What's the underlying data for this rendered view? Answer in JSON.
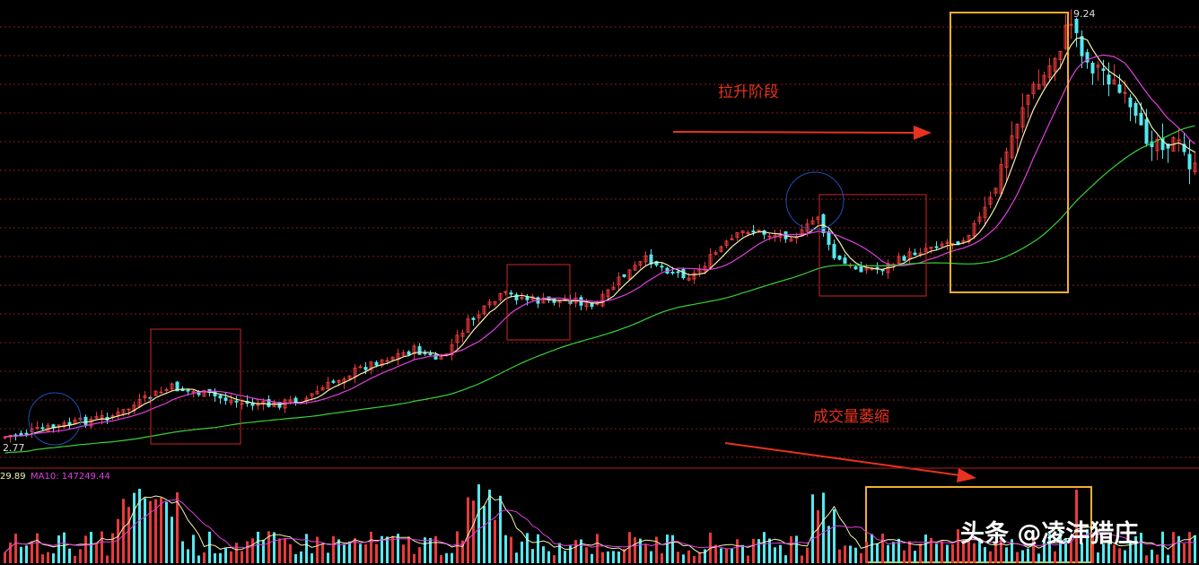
{
  "colors": {
    "up": "#e83a3a",
    "down": "#54e8f0",
    "ma_fast": "#f3f3b0",
    "ma_mid": "#e040e0",
    "ma_slow": "#38d238",
    "grid": "#8a1a1a",
    "annotation": "#e8321e",
    "highlight_box": "#f2b02e",
    "circle": "#1f4fb5",
    "price_text": "#dcdcdc",
    "ma10_text": "#e040e0"
  },
  "price_panel": {
    "high_label": "9.24",
    "low_label": "2.77",
    "annotation_pull_up": "拉升阶段",
    "annotation_volume_shrink": "成交量萎缩"
  },
  "volume_panel": {
    "ma5_value": "29.89",
    "ma10_label": "MA10: 147249.44"
  },
  "watermark": {
    "text": "头条 @凌沣猎庄"
  },
  "chart_data": {
    "type": "candlestick",
    "title": "",
    "price_range": [
      2.77,
      9.24
    ],
    "legend": "none",
    "grid": true,
    "price_extremes": {
      "high": 9.24,
      "low": 2.77
    },
    "indicators": [
      "MA (short)",
      "MA (medium)",
      "MA (long)",
      "Volume",
      "Volume MA5",
      "Volume MA10"
    ],
    "volume_ma10": 147249.44,
    "volume_ma5_partial": 29.89,
    "annotations": [
      {
        "text": "拉升阶段",
        "meaning": "pull-up stage"
      },
      {
        "text": "成交量萎缩",
        "meaning": "volume shrinking"
      }
    ]
  }
}
